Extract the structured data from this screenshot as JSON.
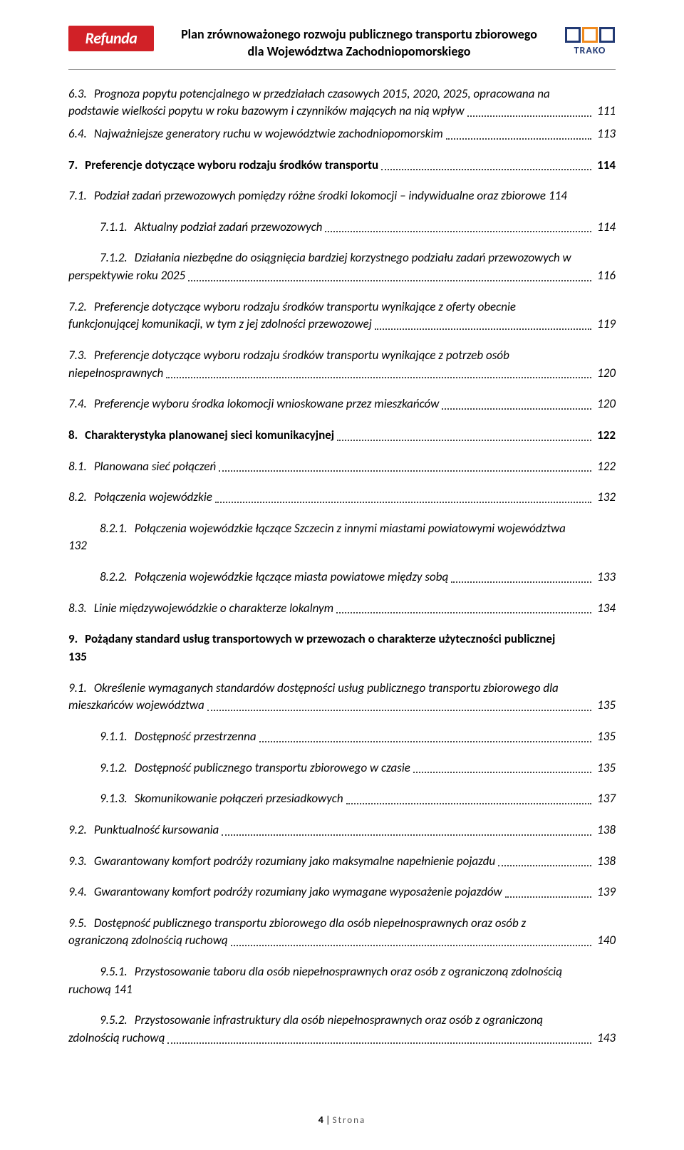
{
  "header": {
    "logo_left": "Refunda",
    "title_line1": "Plan zrównoważonego rozwoju publicznego transportu zbiorowego",
    "title_line2": "dla Województwa Zachodniopomorskiego",
    "logo_right": "TRAKO"
  },
  "toc": [
    {
      "num": "6.3.",
      "label_lines": [
        "Prognoza popytu potencjalnego w przedziałach czasowych 2015, 2020, 2025, opracowana na",
        "podstawie wielkości popytu w roku bazowym i czynników mających na nią wpływ"
      ],
      "page": "111",
      "italic": true,
      "indent": 0
    },
    {
      "num": "6.4.",
      "label_lines": [
        "Najważniejsze generatory ruchu w województwie zachodniopomorskim"
      ],
      "page": "113",
      "italic": true,
      "indent": 0
    },
    {
      "num": "7.",
      "label_lines": [
        "Preferencje dotyczące wyboru rodzaju środków transportu"
      ],
      "page": "114",
      "bold": true,
      "indent": 0,
      "gap_before": true
    },
    {
      "num": "7.1.",
      "label_lines": [
        "Podział zadań przewozowych pomiędzy różne środki lokomocji – indywidualne oraz zbiorowe"
      ],
      "page": "114",
      "italic": true,
      "indent": 0,
      "gap_before": true,
      "no_dots": true
    },
    {
      "num": "7.1.1.",
      "label_lines": [
        "Aktualny podział zadań przewozowych"
      ],
      "page": "114",
      "italic": true,
      "indent": 1,
      "gap_before": true
    },
    {
      "num": "7.1.2.",
      "label_lines": [
        "Działania niezbędne do osiągnięcia bardziej korzystnego podziału zadań przewozowych w",
        "perspektywie roku 2025"
      ],
      "page": "116",
      "italic": true,
      "indent": 1,
      "gap_before": true,
      "wrap_hang": true
    },
    {
      "num": "7.2.",
      "label_lines": [
        "Preferencje dotyczące wyboru rodzaju środków transportu wynikające z oferty obecnie",
        "funkcjonującej komunikacji, w tym z jej zdolności przewozowej"
      ],
      "page": "119",
      "italic": true,
      "indent": 0,
      "gap_before": true
    },
    {
      "num": "7.3.",
      "label_lines": [
        "Preferencje dotyczące wyboru rodzaju środków transportu wynikające z potrzeb osób",
        "niepełnosprawnych"
      ],
      "page": "120",
      "italic": true,
      "indent": 0,
      "gap_before": true
    },
    {
      "num": "7.4.",
      "label_lines": [
        "Preferencje wyboru środka lokomocji wnioskowane przez mieszkańców"
      ],
      "page": "120",
      "italic": true,
      "indent": 0,
      "gap_before": true
    },
    {
      "num": "8.",
      "label_lines": [
        "Charakterystyka planowanej sieci komunikacyjnej"
      ],
      "page": "122",
      "bold": true,
      "indent": 0,
      "gap_before": true
    },
    {
      "num": "8.1.",
      "label_lines": [
        "Planowana sieć połączeń"
      ],
      "page": "122",
      "italic": true,
      "indent": 0,
      "gap_before": true
    },
    {
      "num": "8.2.",
      "label_lines": [
        "Połączenia wojewódzkie"
      ],
      "page": "132",
      "italic": true,
      "indent": 0,
      "gap_before": true
    },
    {
      "num": "8.2.1.",
      "label_lines": [
        "Połączenia wojewódzkie łączące Szczecin z innymi miastami powiatowymi województwa",
        "132"
      ],
      "page": "",
      "italic": true,
      "indent": 1,
      "gap_before": true,
      "wrap_hang": true,
      "no_dots_last": true
    },
    {
      "num": "8.2.2.",
      "label_lines": [
        "Połączenia wojewódzkie łączące miasta powiatowe między sobą"
      ],
      "page": "133",
      "italic": true,
      "indent": 1,
      "gap_before": true
    },
    {
      "num": "8.3.",
      "label_lines": [
        "Linie międzywojewódzkie o charakterze lokalnym"
      ],
      "page": "134",
      "italic": true,
      "indent": 0,
      "gap_before": true
    },
    {
      "num": "9.",
      "label_lines": [
        "Pożądany standard usług transportowych w przewozach o charakterze użyteczności publicznej",
        "135"
      ],
      "page": "",
      "bold": true,
      "indent": 0,
      "gap_before": true,
      "wrap_hang": true,
      "no_dots_last": true
    },
    {
      "num": "9.1.",
      "label_lines": [
        "Określenie wymaganych standardów dostępności usług publicznego transportu zbiorowego dla",
        "mieszkańców województwa"
      ],
      "page": "135",
      "italic": true,
      "indent": 0,
      "gap_before": true
    },
    {
      "num": "9.1.1.",
      "label_lines": [
        "Dostępność przestrzenna"
      ],
      "page": "135",
      "italic": true,
      "indent": 1,
      "gap_before": true
    },
    {
      "num": "9.1.2.",
      "label_lines": [
        "Dostępność publicznego transportu zbiorowego w czasie"
      ],
      "page": "135",
      "italic": true,
      "indent": 1,
      "gap_before": true
    },
    {
      "num": "9.1.3.",
      "label_lines": [
        "Skomunikowanie połączeń przesiadkowych"
      ],
      "page": "137",
      "italic": true,
      "indent": 1,
      "gap_before": true
    },
    {
      "num": "9.2.",
      "label_lines": [
        "Punktualność kursowania"
      ],
      "page": "138",
      "italic": true,
      "indent": 0,
      "gap_before": true
    },
    {
      "num": "9.3.",
      "label_lines": [
        "Gwarantowany komfort podróży rozumiany jako maksymalne napełnienie pojazdu"
      ],
      "page": "138",
      "italic": true,
      "indent": 0,
      "gap_before": true
    },
    {
      "num": "9.4.",
      "label_lines": [
        "Gwarantowany komfort podróży rozumiany jako wymagane wyposażenie pojazdów"
      ],
      "page": "139",
      "italic": true,
      "indent": 0,
      "gap_before": true
    },
    {
      "num": "9.5.",
      "label_lines": [
        "Dostępność publicznego transportu zbiorowego dla osób niepełnosprawnych oraz osób z",
        "ograniczoną zdolnością ruchową"
      ],
      "page": "140",
      "italic": true,
      "indent": 0,
      "gap_before": true
    },
    {
      "num": "9.5.1.",
      "label_lines": [
        "Przystosowanie taboru dla osób niepełnosprawnych oraz osób z ograniczoną zdolnością",
        "ruchową   141"
      ],
      "page": "",
      "italic": true,
      "indent": 1,
      "gap_before": true,
      "wrap_hang": true,
      "no_dots_last": true
    },
    {
      "num": "9.5.2.",
      "label_lines": [
        "Przystosowanie infrastruktury dla osób niepełnosprawnych oraz osób z ograniczoną",
        "zdolnością ruchową"
      ],
      "page": "143",
      "italic": true,
      "indent": 1,
      "gap_before": true,
      "wrap_hang": true
    }
  ],
  "footer": {
    "page_number": "4",
    "sep": " | ",
    "label": "Strona"
  }
}
